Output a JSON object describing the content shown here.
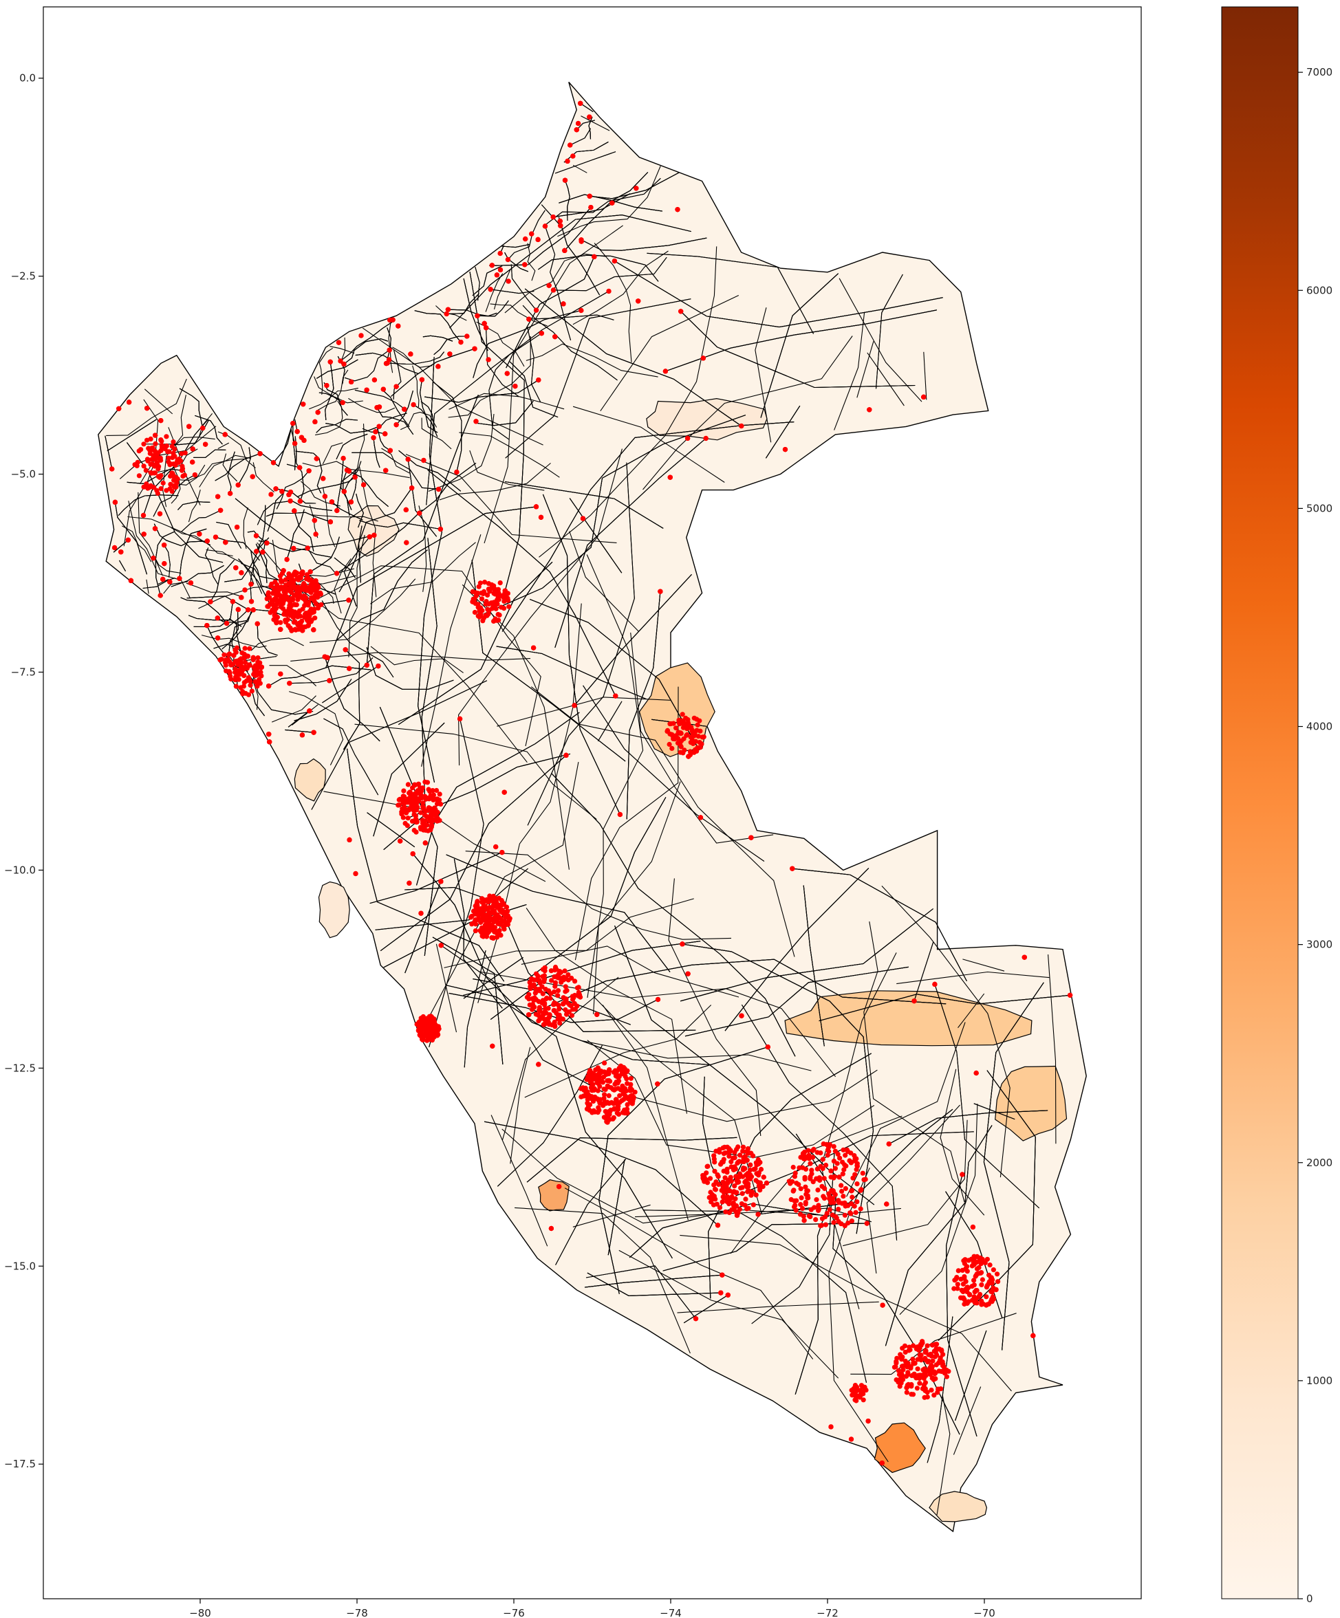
{
  "chart_data": {
    "type": "choropleth map with point overlay",
    "title": "",
    "xlabel": "",
    "ylabel": "",
    "xlim": [
      -82.0,
      -68.0
    ],
    "ylim": [
      -19.2,
      0.9
    ],
    "x_ticks": [
      "−80",
      "−78",
      "−76",
      "−74",
      "−72",
      "−70"
    ],
    "x_tick_values": [
      -80,
      -78,
      -76,
      -74,
      -72,
      -70
    ],
    "y_ticks": [
      "0.0",
      "−2.5",
      "−5.0",
      "−7.5",
      "−10.0",
      "−12.5",
      "−15.0",
      "−17.5"
    ],
    "y_tick_values": [
      0.0,
      -2.5,
      -5.0,
      -7.5,
      -10.0,
      -12.5,
      -15.0,
      -17.5
    ],
    "colorbar": {
      "colormap": "Oranges",
      "range": [
        0,
        7300
      ],
      "ticks": [
        "0",
        "1000",
        "2000",
        "3000",
        "4000",
        "5000",
        "6000",
        "7000"
      ],
      "tick_values": [
        0,
        1000,
        2000,
        3000,
        4000,
        5000,
        6000,
        7000
      ],
      "colors": [
        "#fff5eb",
        "#fee6ce",
        "#fdd0a2",
        "#fdae6b",
        "#fd8d3c",
        "#f16913",
        "#d94801",
        "#a63603",
        "#7f2704"
      ]
    },
    "region_fill": "#fdf3e7",
    "region_edge": "#000000",
    "point_color": "#ff0000",
    "outline": [
      [
        -75.3,
        -0.05
      ],
      [
        -74.9,
        -0.5
      ],
      [
        -74.4,
        -1.0
      ],
      [
        -73.6,
        -1.3
      ],
      [
        -73.1,
        -2.2
      ],
      [
        -72.6,
        -2.4
      ],
      [
        -72.0,
        -2.45
      ],
      [
        -71.3,
        -2.2
      ],
      [
        -70.7,
        -2.3
      ],
      [
        -70.3,
        -2.7
      ],
      [
        -70.1,
        -3.6
      ],
      [
        -69.95,
        -4.2
      ],
      [
        -70.4,
        -4.25
      ],
      [
        -71.0,
        -4.4
      ],
      [
        -71.9,
        -4.5
      ],
      [
        -72.6,
        -5.0
      ],
      [
        -73.2,
        -5.2
      ],
      [
        -73.6,
        -5.2
      ],
      [
        -73.8,
        -5.8
      ],
      [
        -73.6,
        -6.5
      ],
      [
        -74.0,
        -7.0
      ],
      [
        -74.0,
        -7.5
      ],
      [
        -73.7,
        -7.8
      ],
      [
        -73.4,
        -8.5
      ],
      [
        -73.1,
        -9.0
      ],
      [
        -72.9,
        -9.5
      ],
      [
        -72.3,
        -9.6
      ],
      [
        -71.8,
        -10.0
      ],
      [
        -70.6,
        -9.5
      ],
      [
        -70.6,
        -11.0
      ],
      [
        -69.6,
        -10.95
      ],
      [
        -69.0,
        -11.0
      ],
      [
        -68.7,
        -12.6
      ],
      [
        -68.9,
        -13.4
      ],
      [
        -69.1,
        -14.0
      ],
      [
        -68.9,
        -14.6
      ],
      [
        -69.3,
        -15.2
      ],
      [
        -69.4,
        -15.7
      ],
      [
        -69.3,
        -16.4
      ],
      [
        -69.0,
        -16.5
      ],
      [
        -69.6,
        -16.6
      ],
      [
        -69.9,
        -17.0
      ],
      [
        -70.1,
        -17.5
      ],
      [
        -70.3,
        -17.8
      ],
      [
        -70.4,
        -18.35
      ],
      [
        -71.0,
        -17.9
      ],
      [
        -71.5,
        -17.3
      ],
      [
        -72.1,
        -17.1
      ],
      [
        -72.7,
        -16.7
      ],
      [
        -73.5,
        -16.3
      ],
      [
        -74.3,
        -15.8
      ],
      [
        -75.2,
        -15.3
      ],
      [
        -75.7,
        -14.9
      ],
      [
        -76.2,
        -14.2
      ],
      [
        -76.4,
        -13.8
      ],
      [
        -76.5,
        -13.2
      ],
      [
        -76.9,
        -12.6
      ],
      [
        -77.2,
        -12.1
      ],
      [
        -77.4,
        -11.5
      ],
      [
        -77.7,
        -11.2
      ],
      [
        -77.8,
        -10.8
      ],
      [
        -78.2,
        -10.2
      ],
      [
        -78.6,
        -9.4
      ],
      [
        -79.0,
        -8.6
      ],
      [
        -79.4,
        -7.9
      ],
      [
        -79.8,
        -7.3
      ],
      [
        -80.3,
        -6.8
      ],
      [
        -80.7,
        -6.5
      ],
      [
        -81.2,
        -6.1
      ],
      [
        -81.1,
        -5.7
      ],
      [
        -81.2,
        -5.1
      ],
      [
        -81.3,
        -4.5
      ],
      [
        -80.9,
        -4.0
      ],
      [
        -80.5,
        -3.6
      ],
      [
        -80.3,
        -3.5
      ],
      [
        -80.1,
        -3.8
      ],
      [
        -79.7,
        -4.4
      ],
      [
        -79.4,
        -4.6
      ],
      [
        -79.0,
        -4.9
      ],
      [
        -78.8,
        -4.3
      ],
      [
        -78.6,
        -3.8
      ],
      [
        -78.4,
        -3.4
      ],
      [
        -78.1,
        -3.2
      ],
      [
        -77.5,
        -3.0
      ],
      [
        -76.8,
        -2.6
      ],
      [
        -76.0,
        -2.0
      ],
      [
        -75.6,
        -1.5
      ],
      [
        -75.4,
        -0.9
      ],
      [
        -75.2,
        -0.4
      ],
      [
        -75.3,
        -0.05
      ]
    ]
  }
}
